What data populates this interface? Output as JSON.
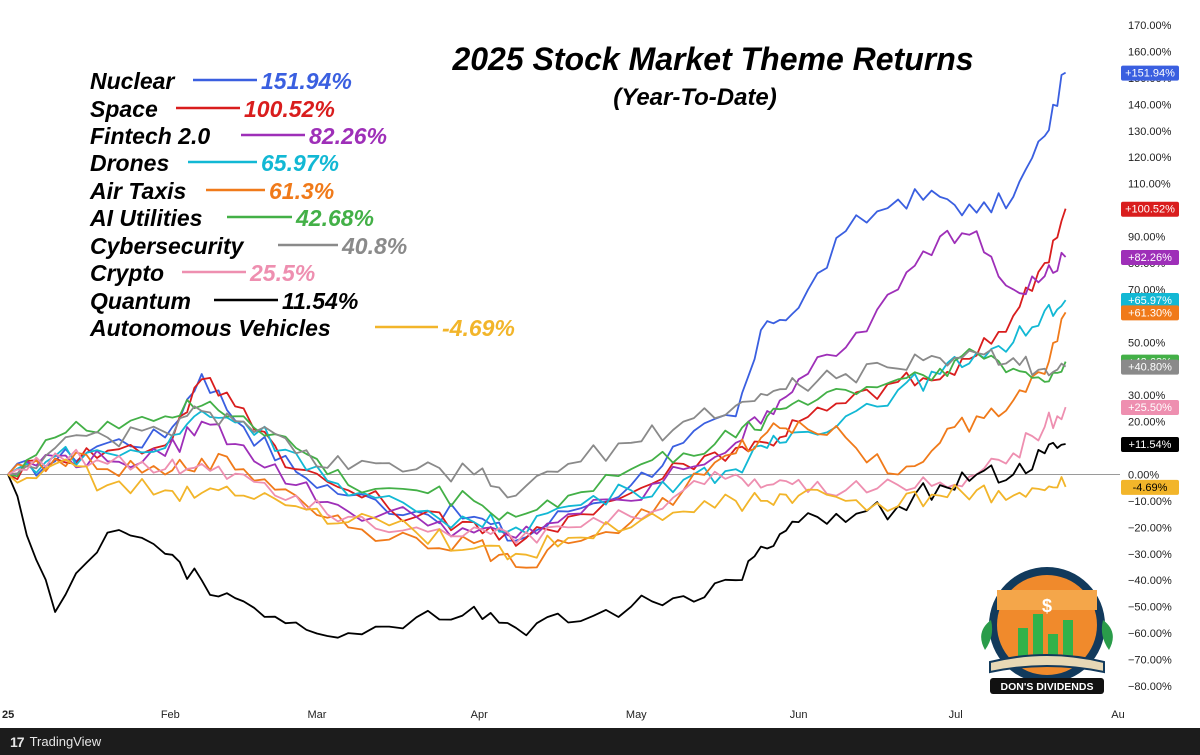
{
  "chart_data": {
    "type": "line",
    "title": "2025 Stock Market Theme Returns",
    "subtitle": "(Year-To-Date)",
    "xlabel": "",
    "ylabel": "",
    "ylim": [
      -85,
      175
    ],
    "y_unit": "%",
    "y_ticks": [
      "170.00%",
      "160.00%",
      "150.00%",
      "140.00%",
      "130.00%",
      "120.00%",
      "110.00%",
      "100.00%",
      "90.00%",
      "80.00%",
      "70.00%",
      "60.00%",
      "50.00%",
      "40.00%",
      "30.00%",
      "20.00%",
      "10.00%",
      "0.00%",
      "−10.00%",
      "−20.00%",
      "−30.00%",
      "−40.00%",
      "−50.00%",
      "−60.00%",
      "−70.00%",
      "−80.00%"
    ],
    "x_ticks": [
      {
        "label": "25",
        "date": "2025-01-01"
      },
      {
        "label": "Feb",
        "date": "2025-02-01"
      },
      {
        "label": "Mar",
        "date": "2025-03-01"
      },
      {
        "label": "Apr",
        "date": "2025-04-01"
      },
      {
        "label": "May",
        "date": "2025-05-01"
      },
      {
        "label": "Jun",
        "date": "2025-06-01"
      },
      {
        "label": "Jul",
        "date": "2025-07-01"
      },
      {
        "label": "Au",
        "date": "2025-08-01"
      }
    ],
    "zero_line": true,
    "legend_position": "top-left",
    "series": [
      {
        "name": "Nuclear",
        "label": "151.94%",
        "badge": "+151.94%",
        "color": "#3a5fe0",
        "dates": [
          "2025-01-01",
          "2025-01-10",
          "2025-01-20",
          "2025-01-31",
          "2025-02-07",
          "2025-02-15",
          "2025-02-25",
          "2025-03-07",
          "2025-03-20",
          "2025-03-31",
          "2025-04-08",
          "2025-04-18",
          "2025-04-30",
          "2025-05-10",
          "2025-05-20",
          "2025-05-26",
          "2025-06-01",
          "2025-06-10",
          "2025-06-20",
          "2025-06-28",
          "2025-07-05",
          "2025-07-12",
          "2025-07-18",
          "2025-07-22"
        ],
        "values": [
          0,
          5,
          12,
          14,
          38,
          18,
          1,
          -8,
          -14,
          -16,
          -25,
          -14,
          -4,
          12,
          22,
          58,
          63,
          92,
          104,
          105,
          99,
          105,
          128,
          152
        ]
      },
      {
        "name": "Space",
        "label": "100.52%",
        "badge": "+100.52%",
        "color": "#d91d1d",
        "dates": [
          "2025-01-01",
          "2025-01-10",
          "2025-01-20",
          "2025-01-31",
          "2025-02-07",
          "2025-02-15",
          "2025-02-25",
          "2025-03-07",
          "2025-03-20",
          "2025-03-31",
          "2025-04-08",
          "2025-04-18",
          "2025-04-30",
          "2025-05-10",
          "2025-05-20",
          "2025-05-26",
          "2025-06-01",
          "2025-06-10",
          "2025-06-20",
          "2025-06-28",
          "2025-07-05",
          "2025-07-12",
          "2025-07-18",
          "2025-07-22"
        ],
        "values": [
          0,
          6,
          9,
          11,
          36,
          25,
          2,
          -6,
          -16,
          -18,
          -27,
          -16,
          -7,
          4,
          10,
          12,
          20,
          27,
          35,
          36,
          45,
          60,
          80,
          100.52
        ]
      },
      {
        "name": "Fintech 2.0",
        "label": "82.26%",
        "badge": "+82.26%",
        "color": "#9e2fb8",
        "dates": [
          "2025-01-01",
          "2025-01-10",
          "2025-01-20",
          "2025-01-31",
          "2025-02-07",
          "2025-02-15",
          "2025-02-25",
          "2025-03-07",
          "2025-03-20",
          "2025-03-31",
          "2025-04-08",
          "2025-04-18",
          "2025-04-30",
          "2025-05-10",
          "2025-05-20",
          "2025-05-26",
          "2025-06-01",
          "2025-06-10",
          "2025-06-20",
          "2025-06-28",
          "2025-07-05",
          "2025-07-12",
          "2025-07-18",
          "2025-07-22"
        ],
        "values": [
          0,
          7,
          5,
          7,
          20,
          11,
          -4,
          -14,
          -16,
          -22,
          -24,
          -15,
          -10,
          2,
          12,
          24,
          36,
          48,
          70,
          90,
          92,
          70,
          75,
          82.26
        ]
      },
      {
        "name": "Drones",
        "label": "65.97%",
        "badge": "+65.97%",
        "color": "#12b8d4",
        "dates": [
          "2025-01-01",
          "2025-01-10",
          "2025-01-20",
          "2025-01-31",
          "2025-02-07",
          "2025-02-15",
          "2025-02-25",
          "2025-03-07",
          "2025-03-20",
          "2025-03-31",
          "2025-04-08",
          "2025-04-18",
          "2025-04-30",
          "2025-05-10",
          "2025-05-20",
          "2025-05-26",
          "2025-06-01",
          "2025-06-10",
          "2025-06-20",
          "2025-06-28",
          "2025-07-05",
          "2025-07-12",
          "2025-07-18",
          "2025-07-22"
        ],
        "values": [
          0,
          7,
          8,
          10,
          24,
          20,
          8,
          -8,
          -14,
          -18,
          -20,
          -12,
          -6,
          -2,
          2,
          10,
          16,
          22,
          32,
          38,
          46,
          50,
          62,
          65.97
        ]
      },
      {
        "name": "Air Taxis",
        "label": "61.3%",
        "badge": "+61.30%",
        "color": "#f07a1a",
        "dates": [
          "2025-01-01",
          "2025-01-10",
          "2025-01-20",
          "2025-01-31",
          "2025-02-07",
          "2025-02-15",
          "2025-02-25",
          "2025-03-07",
          "2025-03-20",
          "2025-03-31",
          "2025-04-08",
          "2025-04-18",
          "2025-04-30",
          "2025-05-10",
          "2025-05-20",
          "2025-05-26",
          "2025-06-01",
          "2025-06-10",
          "2025-06-20",
          "2025-06-28",
          "2025-07-05",
          "2025-07-12",
          "2025-07-18",
          "2025-07-22"
        ],
        "values": [
          0,
          6,
          2,
          0,
          6,
          2,
          -8,
          -20,
          -24,
          -26,
          -35,
          -26,
          -18,
          -6,
          8,
          16,
          20,
          14,
          0,
          12,
          22,
          28,
          38,
          61.3
        ]
      },
      {
        "name": "AI Utilities",
        "label": "42.68%",
        "badge": "+42.68%",
        "color": "#43b047",
        "dates": [
          "2025-01-01",
          "2025-01-10",
          "2025-01-20",
          "2025-01-31",
          "2025-02-07",
          "2025-02-15",
          "2025-02-25",
          "2025-03-07",
          "2025-03-20",
          "2025-03-31",
          "2025-04-08",
          "2025-04-18",
          "2025-04-30",
          "2025-05-10",
          "2025-05-20",
          "2025-05-26",
          "2025-06-01",
          "2025-06-10",
          "2025-06-20",
          "2025-06-28",
          "2025-07-05",
          "2025-07-12",
          "2025-07-18",
          "2025-07-22"
        ],
        "values": [
          0,
          14,
          20,
          22,
          26,
          22,
          10,
          -4,
          -6,
          -10,
          -16,
          -8,
          2,
          8,
          14,
          22,
          28,
          32,
          36,
          40,
          46,
          40,
          35,
          42.68
        ]
      },
      {
        "name": "Cybersecurity",
        "label": "40.8%",
        "badge": "+40.80%",
        "color": "#8a8a8a",
        "dates": [
          "2025-01-01",
          "2025-01-10",
          "2025-01-20",
          "2025-01-31",
          "2025-02-07",
          "2025-02-15",
          "2025-02-25",
          "2025-03-07",
          "2025-03-20",
          "2025-03-31",
          "2025-04-08",
          "2025-04-18",
          "2025-04-30",
          "2025-05-10",
          "2025-05-20",
          "2025-05-26",
          "2025-06-01",
          "2025-06-10",
          "2025-06-20",
          "2025-06-28",
          "2025-07-05",
          "2025-07-12",
          "2025-07-18",
          "2025-07-22"
        ],
        "values": [
          0,
          10,
          14,
          16,
          24,
          20,
          8,
          2,
          2,
          0,
          -8,
          4,
          12,
          20,
          26,
          30,
          34,
          38,
          40,
          44,
          46,
          44,
          40,
          40.8
        ]
      },
      {
        "name": "Crypto",
        "label": "25.5%",
        "badge": "+25.50%",
        "color": "#ee8fb0",
        "dates": [
          "2025-01-01",
          "2025-01-10",
          "2025-01-20",
          "2025-01-31",
          "2025-02-07",
          "2025-02-15",
          "2025-02-25",
          "2025-03-07",
          "2025-03-20",
          "2025-03-31",
          "2025-04-08",
          "2025-04-18",
          "2025-04-30",
          "2025-05-10",
          "2025-05-20",
          "2025-05-26",
          "2025-06-01",
          "2025-06-10",
          "2025-06-20",
          "2025-06-28",
          "2025-07-05",
          "2025-07-12",
          "2025-07-18",
          "2025-07-22"
        ],
        "values": [
          0,
          8,
          4,
          2,
          4,
          0,
          -8,
          -16,
          -20,
          -20,
          -26,
          -20,
          -16,
          -6,
          0,
          -4,
          -2,
          -6,
          -4,
          -3,
          0,
          8,
          18,
          25.5
        ]
      },
      {
        "name": "Quantum",
        "label": "11.54%",
        "badge": "+11.54%",
        "color": "#000000",
        "dates": [
          "2025-01-01",
          "2025-01-10",
          "2025-01-20",
          "2025-01-31",
          "2025-02-07",
          "2025-02-15",
          "2025-02-25",
          "2025-03-07",
          "2025-03-20",
          "2025-03-31",
          "2025-04-08",
          "2025-04-18",
          "2025-04-30",
          "2025-05-10",
          "2025-05-20",
          "2025-05-26",
          "2025-06-01",
          "2025-06-10",
          "2025-06-20",
          "2025-06-28",
          "2025-07-05",
          "2025-07-12",
          "2025-07-18",
          "2025-07-22"
        ],
        "values": [
          0,
          -52,
          -22,
          -30,
          -40,
          -48,
          -56,
          -60,
          -54,
          -50,
          -58,
          -56,
          -50,
          -46,
          -40,
          -28,
          -18,
          -18,
          -12,
          -4,
          0,
          0,
          8,
          11.54
        ]
      },
      {
        "name": "Autonomous Vehicles",
        "label": "-4.69%",
        "badge": "-4.69%",
        "color": "#f2b52a",
        "dates": [
          "2025-01-01",
          "2025-01-10",
          "2025-01-20",
          "2025-01-31",
          "2025-02-07",
          "2025-02-15",
          "2025-02-25",
          "2025-03-07",
          "2025-03-20",
          "2025-03-31",
          "2025-04-08",
          "2025-04-18",
          "2025-04-30",
          "2025-05-10",
          "2025-05-20",
          "2025-05-26",
          "2025-06-01",
          "2025-06-10",
          "2025-06-20",
          "2025-06-28",
          "2025-07-05",
          "2025-07-12",
          "2025-07-18",
          "2025-07-22"
        ],
        "values": [
          0,
          4,
          -4,
          -6,
          -7,
          -8,
          -12,
          -18,
          -22,
          -28,
          -30,
          -24,
          -20,
          -14,
          -10,
          -10,
          -8,
          -10,
          -12,
          -8,
          -6,
          -8,
          -6,
          -4.69
        ]
      }
    ]
  },
  "branding": {
    "platform": "TradingView",
    "platform_mark": "17",
    "logo_text": "DON'S DIVIDENDS",
    "logo_symbol": "$"
  }
}
